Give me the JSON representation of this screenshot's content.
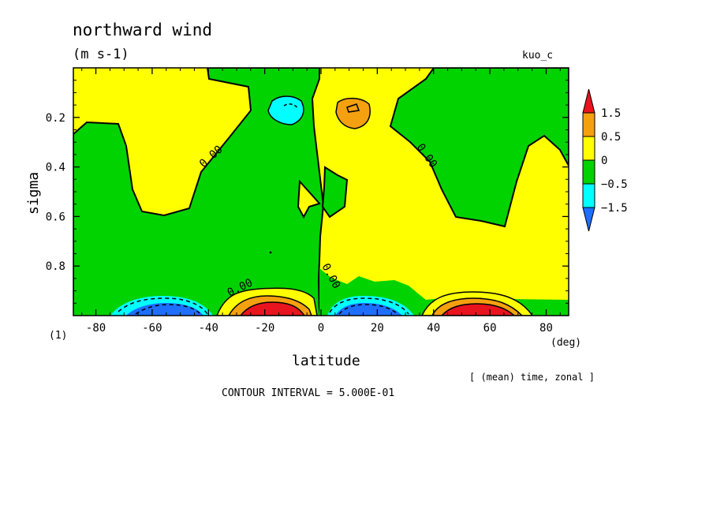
{
  "chart_data": {
    "type": "heatmap",
    "title": "northward wind",
    "units": "(m s-1)",
    "run_label": "kuo_c",
    "panel_label": "(1)",
    "xlabel": "latitude",
    "x_unit": "(deg)",
    "ylabel": "sigma",
    "xlim": [
      -88,
      88
    ],
    "ylim": [
      0.0,
      1.0
    ],
    "y_inverted": true,
    "x_ticks": [
      -80,
      -60,
      -40,
      -20,
      0,
      20,
      40,
      60,
      80
    ],
    "y_ticks": [
      0.2,
      0.4,
      0.6,
      0.8
    ],
    "y_tick_labels": [
      "0.2",
      "0.4",
      "0.6",
      "0.8"
    ],
    "contour_label": "0.00",
    "contour_interval": "CONTOUR INTERVAL = 5.000E-01",
    "averaging_note": "[ (mean) time, zonal ]",
    "colorbar": {
      "levels": [
        "1.5",
        "0.5",
        "0",
        "−0.5",
        "−1.5"
      ],
      "colors": [
        "#e8141e",
        "#f5a00f",
        "#ffff00",
        "#00d300",
        "#00ffff",
        "#1e6eff"
      ]
    },
    "regions": {
      "positive_color": "#ffff00",
      "negative_color": "#00d300",
      "strong_positive_color": "#f5a00f",
      "max_positive_color": "#e8141e",
      "strong_negative_color": "#00ffff",
      "max_negative_color": "#1e6eff"
    }
  }
}
